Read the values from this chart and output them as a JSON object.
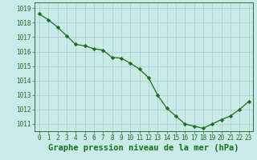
{
  "x": [
    0,
    1,
    2,
    3,
    4,
    5,
    6,
    7,
    8,
    9,
    10,
    11,
    12,
    13,
    14,
    15,
    16,
    17,
    18,
    19,
    20,
    21,
    22,
    23
  ],
  "y": [
    1018.6,
    1018.2,
    1017.7,
    1017.1,
    1016.5,
    1016.4,
    1016.2,
    1016.1,
    1015.6,
    1015.55,
    1015.2,
    1014.8,
    1014.2,
    1013.0,
    1012.1,
    1011.55,
    1011.0,
    1010.85,
    1010.7,
    1011.0,
    1011.3,
    1011.55,
    1012.0,
    1012.55
  ],
  "line_color": "#1a6e1a",
  "marker_color": "#1a6e1a",
  "bg_color": "#c8eae8",
  "grid_color": "#a8ccc8",
  "xlabel": "Graphe pression niveau de la mer (hPa)",
  "ylim_min": 1010.5,
  "ylim_max": 1019.4,
  "xlim_min": -0.5,
  "xlim_max": 23.5,
  "yticks": [
    1011,
    1012,
    1013,
    1014,
    1015,
    1016,
    1017,
    1018,
    1019
  ],
  "xticks": [
    0,
    1,
    2,
    3,
    4,
    5,
    6,
    7,
    8,
    9,
    10,
    11,
    12,
    13,
    14,
    15,
    16,
    17,
    18,
    19,
    20,
    21,
    22,
    23
  ],
  "tick_label_fontsize": 5.5,
  "xlabel_fontsize": 7.5
}
